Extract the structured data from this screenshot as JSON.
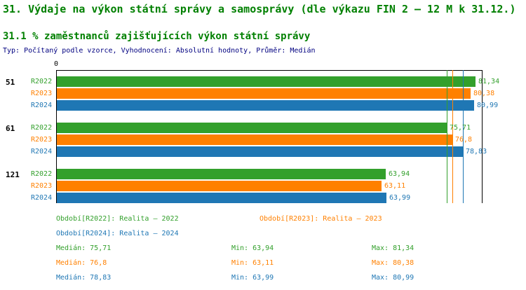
{
  "colors": {
    "title_green": "#008000",
    "meta_navy": "#000080",
    "green": "#33A02C",
    "orange": "#FF8000",
    "blue": "#1F77B4",
    "axis": "#000000"
  },
  "header": {
    "title": "31. Výdaje na výkon státní správy a samosprávy (dle výkazu FIN 2 – 12 M k 31.12.)",
    "subtitle": "31.1 % zaměstnanců zajišťujících výkon státní správy",
    "type_info": "Typ: Počítaný podle vzorce, Vyhodnocení: Absolutní hodnoty, Průměr: Medián"
  },
  "chart_data": {
    "type": "bar",
    "orientation": "horizontal",
    "title": "31.1 % zaměstnanců zajišťujících výkon státní správy",
    "xlabel": "",
    "ylabel": "",
    "axis_origin_label": "0",
    "xlim": [
      0,
      82.5
    ],
    "grid": false,
    "groups": [
      "51",
      "61",
      "121"
    ],
    "series": [
      {
        "name": "R2022",
        "color": "#33A02C",
        "values": [
          81.34,
          75.71,
          63.94
        ],
        "labels": [
          "81,34",
          "75,71",
          "63,94"
        ]
      },
      {
        "name": "R2023",
        "color": "#FF8000",
        "values": [
          80.38,
          76.8,
          63.11
        ],
        "labels": [
          "80,38",
          "76,8",
          "63,11"
        ]
      },
      {
        "name": "R2024",
        "color": "#1F77B4",
        "values": [
          80.99,
          78.83,
          63.99
        ],
        "labels": [
          "80,99",
          "78,83",
          "63,99"
        ]
      }
    ],
    "median_lines": [
      {
        "series": "R2022",
        "value": 75.71,
        "color": "#33A02C"
      },
      {
        "series": "R2023",
        "value": 76.8,
        "color": "#FF8000"
      },
      {
        "series": "R2024",
        "value": 78.83,
        "color": "#1F77B4"
      }
    ]
  },
  "legend": {
    "periods": [
      {
        "label": "Období[R2022]: Realita – 2022"
      },
      {
        "label": "Období[R2023]: Realita – 2023"
      },
      {
        "label": "Období[R2024]: Realita – 2024"
      }
    ],
    "stats": [
      {
        "median": "Medián: 75,71",
        "min": "Min: 63,94",
        "max": "Max: 81,34"
      },
      {
        "median": "Medián: 76,8",
        "min": "Min: 63,11",
        "max": "Max: 80,38"
      },
      {
        "median": "Medián: 78,83",
        "min": "Min: 63,99",
        "max": "Max: 80,99"
      }
    ]
  }
}
